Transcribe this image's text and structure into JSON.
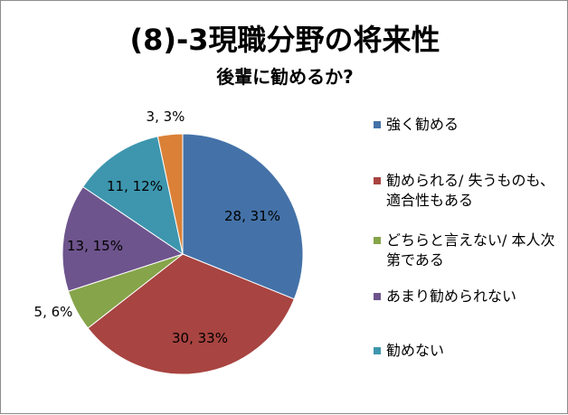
{
  "chart_data": {
    "type": "pie",
    "title": "(8)-3現職分野の将来性",
    "subtitle": "後輩に勧めるか?",
    "slices": [
      {
        "name": "強く勧める",
        "value": 28,
        "percent": "31%",
        "label": "28, 31%",
        "color": "#4472A8"
      },
      {
        "name": "勧められる/ 失うものも、適合性もある",
        "value": 30,
        "percent": "33%",
        "label": "30, 33%",
        "color": "#A84441"
      },
      {
        "name": "どちらと言えない/ 本人次第である",
        "value": 5,
        "percent": "6%",
        "label": "5, 6%",
        "color": "#86A44A"
      },
      {
        "name": "あまり勧められない",
        "value": 13,
        "percent": "15%",
        "label": "13, 15%",
        "color": "#6E548D"
      },
      {
        "name": "勧めない",
        "value": 11,
        "percent": "12%",
        "label": "11, 12%",
        "color": "#3D96AE"
      },
      {
        "name": "",
        "value": 3,
        "percent": "3%",
        "label": "3, 3%",
        "color": "#DA8137"
      }
    ],
    "legend_position": "right"
  }
}
